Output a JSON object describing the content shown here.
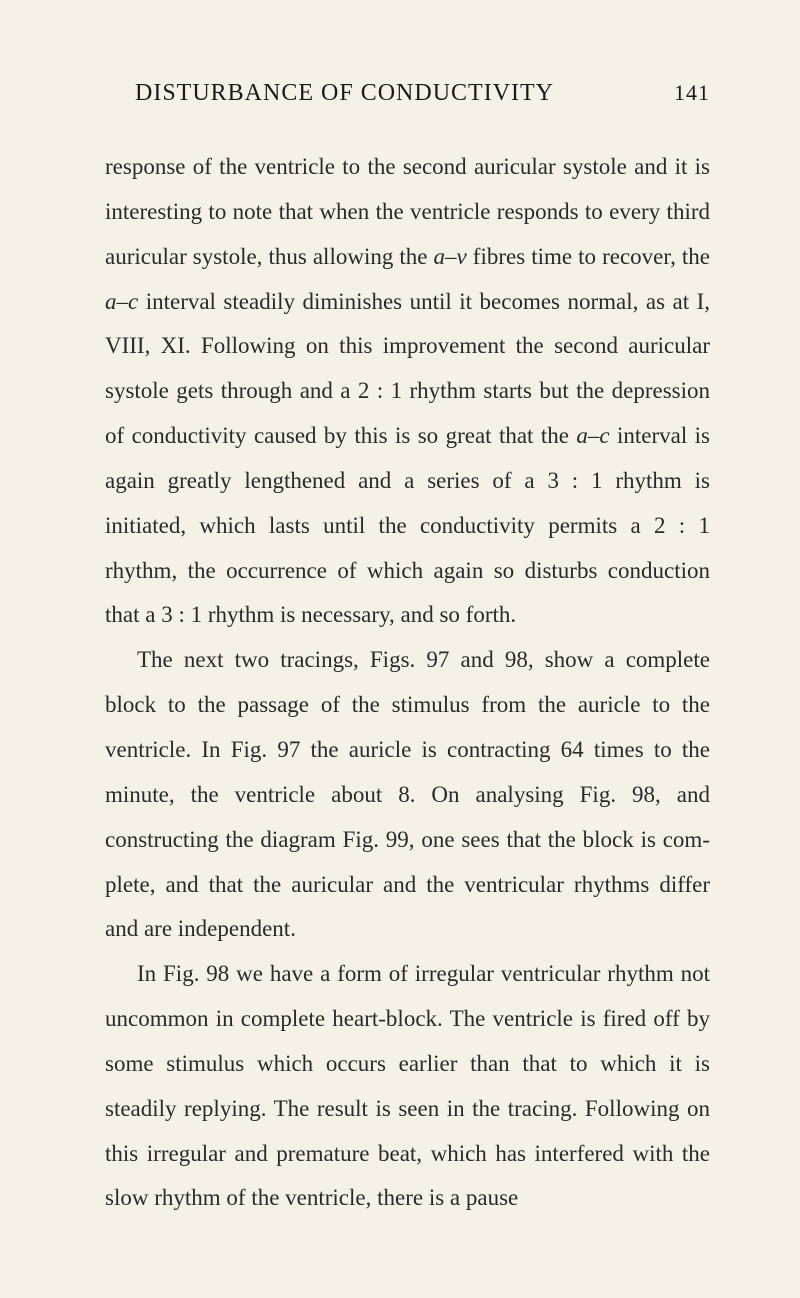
{
  "header": {
    "title": "DISTURBANCE OF CONDUCTIVITY",
    "page_number": "141"
  },
  "paragraphs": {
    "p1_part1": "response of the ventricle to the second auricular systole and it is interesting to note that when the ventricle responds to every third auricular systole, thus allowing the ",
    "p1_italic1": "a–v",
    "p1_part2": " fibres time to recover, the ",
    "p1_italic2": "a–c",
    "p1_part3": " interval steadily diminishes until it becomes normal, as at I, VIII, XI. Following on this improvement the second auri­cular systole gets through and a 2 : 1 rhythm starts but the depression of conductivity caused by this is so great that the ",
    "p1_italic3": "a–c",
    "p1_part4": " interval is again greatly lengthened and a series of a 3 : 1 rhythm is initiated, which lasts until the conductivity permits a 2 : 1 rhythm, the occurrence of which again so disturbs conduction that a 3 : 1 rhythm is necessary, and so forth.",
    "p2": "The next two tracings, Figs. 97 and 98, show a complete block to the passage of the stimulus from the auricle to the ventricle. In Fig. 97 the auricle is contracting 64 times to the minute, the ventricle about 8. On analysing Fig. 98, and constructing the diagram Fig. 99, one sees that the block is com­plete, and that the auricular and the ventricular rhythms differ and are independent.",
    "p3": "In Fig. 98 we have a form of irregular ventricular rhythm not uncommon in complete heart-block. The ventricle is fired off by some stimulus which occurs earlier than that to which it is steadily replying. The result is seen in the tracing. Following on this irregular and premature beat, which has interfered with the slow rhythm of the ventricle, there is a pause"
  }
}
